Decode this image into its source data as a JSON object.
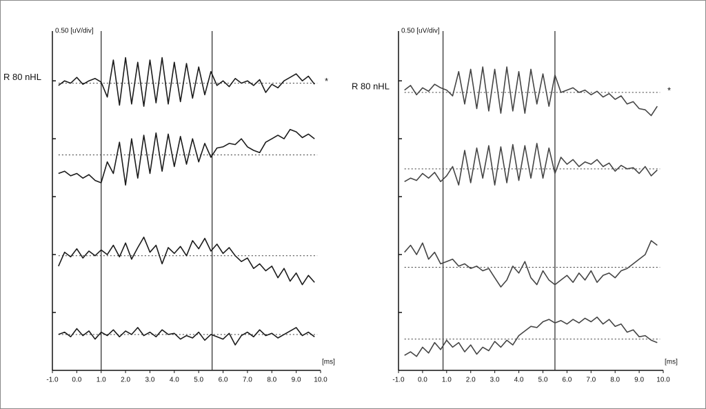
{
  "chart_data": [
    {
      "type": "line",
      "y_label": "0.50 [uV/div]",
      "x_label": "[ms]",
      "trace_label": "R 80 nHL",
      "marker": "*",
      "xlim": [
        -1,
        10
      ],
      "xticks": [
        {
          "value": -1,
          "label": "-1.0"
        },
        {
          "value": 0,
          "label": "0.0"
        },
        {
          "value": 1,
          "label": "1.0"
        },
        {
          "value": 2,
          "label": "2.0"
        },
        {
          "value": 3,
          "label": "3.0"
        },
        {
          "value": 4,
          "label": "4.0"
        },
        {
          "value": 5,
          "label": "5.0"
        },
        {
          "value": 6,
          "label": "6.0"
        },
        {
          "value": 7,
          "label": "7.0"
        },
        {
          "value": 8,
          "label": "8.0"
        },
        {
          "value": 9,
          "label": "9.0"
        },
        {
          "value": 10,
          "label": "10.0"
        }
      ],
      "ylim": [
        0,
        2.93
      ],
      "yticks": [
        0.5,
        1,
        1.5,
        2,
        2.5
      ],
      "cursors": [
        1.0,
        5.55
      ],
      "x": [
        -0.75,
        -0.5,
        -0.25,
        0,
        0.25,
        0.5,
        0.75,
        1,
        1.25,
        1.5,
        1.75,
        2,
        2.25,
        2.5,
        2.75,
        3,
        3.25,
        3.5,
        3.75,
        4,
        4.25,
        4.5,
        4.75,
        5,
        5.25,
        5.5,
        5.75,
        6,
        6.25,
        6.5,
        6.75,
        7,
        7.25,
        7.5,
        7.75,
        8,
        8.25,
        8.5,
        8.75,
        9,
        9.25,
        9.5,
        9.75
      ],
      "series": [
        {
          "color": "#1a1a1a",
          "baseline": 2.48,
          "values": [
            2.46,
            2.5,
            2.48,
            2.53,
            2.47,
            2.5,
            2.52,
            2.49,
            2.36,
            2.68,
            2.29,
            2.7,
            2.3,
            2.66,
            2.28,
            2.68,
            2.31,
            2.7,
            2.3,
            2.66,
            2.32,
            2.65,
            2.35,
            2.62,
            2.38,
            2.58,
            2.46,
            2.5,
            2.45,
            2.52,
            2.48,
            2.5,
            2.46,
            2.51,
            2.4,
            2.47,
            2.44,
            2.5,
            2.53,
            2.56,
            2.5,
            2.54,
            2.47
          ]
        },
        {
          "color": "#1a1a1a",
          "baseline": 1.86,
          "values": [
            1.7,
            1.72,
            1.68,
            1.7,
            1.66,
            1.69,
            1.64,
            1.62,
            1.8,
            1.7,
            1.97,
            1.6,
            2.0,
            1.66,
            2.03,
            1.7,
            2.05,
            1.72,
            2.04,
            1.76,
            2.02,
            1.78,
            2.0,
            1.8,
            1.96,
            1.84,
            1.92,
            1.93,
            1.96,
            1.95,
            2.0,
            1.93,
            1.9,
            1.88,
            1.97,
            2.0,
            2.03,
            2.0,
            2.08,
            2.06,
            2.01,
            2.04,
            2.0
          ]
        },
        {
          "color": "#1a1a1a",
          "baseline": 0.99,
          "values": [
            0.9,
            1.02,
            0.98,
            1.05,
            0.97,
            1.03,
            0.99,
            1.04,
            1.0,
            1.08,
            0.98,
            1.1,
            0.96,
            1.06,
            1.15,
            1.02,
            1.08,
            0.92,
            1.06,
            1.01,
            1.07,
            0.99,
            1.12,
            1.05,
            1.14,
            1.03,
            1.09,
            1.01,
            1.06,
            0.99,
            0.94,
            0.97,
            0.88,
            0.92,
            0.86,
            0.9,
            0.8,
            0.88,
            0.77,
            0.84,
            0.74,
            0.82,
            0.76
          ]
        },
        {
          "color": "#1a1a1a",
          "baseline": 0.31,
          "values": [
            0.31,
            0.33,
            0.29,
            0.36,
            0.3,
            0.34,
            0.27,
            0.33,
            0.3,
            0.35,
            0.29,
            0.34,
            0.31,
            0.37,
            0.3,
            0.33,
            0.29,
            0.35,
            0.31,
            0.32,
            0.27,
            0.3,
            0.28,
            0.33,
            0.26,
            0.31,
            0.29,
            0.27,
            0.32,
            0.22,
            0.3,
            0.33,
            0.29,
            0.35,
            0.3,
            0.32,
            0.28,
            0.31,
            0.34,
            0.37,
            0.3,
            0.33,
            0.29
          ]
        }
      ]
    },
    {
      "type": "line",
      "y_label": "0.50 [uV/div]",
      "x_label": "[ms]",
      "trace_label": "R 80 nHL",
      "marker": "*",
      "xlim": [
        -1,
        10
      ],
      "xticks": [
        {
          "value": -1,
          "label": "-1.0"
        },
        {
          "value": 0,
          "label": "0.0"
        },
        {
          "value": 1,
          "label": "1.0"
        },
        {
          "value": 2,
          "label": "2.0"
        },
        {
          "value": 3,
          "label": "3.0"
        },
        {
          "value": 4,
          "label": "4.0"
        },
        {
          "value": 5,
          "label": "5.0"
        },
        {
          "value": 6,
          "label": "6.0"
        },
        {
          "value": 7,
          "label": "7.0"
        },
        {
          "value": 8,
          "label": "8.0"
        },
        {
          "value": 9,
          "label": "9.0"
        },
        {
          "value": 10,
          "label": "10.0"
        }
      ],
      "ylim": [
        0,
        2.93
      ],
      "yticks": [
        0.5,
        1,
        1.5,
        2,
        2.5
      ],
      "cursors": [
        0.85,
        5.5
      ],
      "x": [
        -0.75,
        -0.5,
        -0.25,
        0,
        0.25,
        0.5,
        0.75,
        1,
        1.25,
        1.5,
        1.75,
        2,
        2.25,
        2.5,
        2.75,
        3,
        3.25,
        3.5,
        3.75,
        4,
        4.25,
        4.5,
        4.75,
        5,
        5.25,
        5.5,
        5.75,
        6,
        6.25,
        6.5,
        6.75,
        7,
        7.25,
        7.5,
        7.75,
        8,
        8.25,
        8.5,
        8.75,
        9,
        9.25,
        9.5,
        9.75
      ],
      "series": [
        {
          "color": "#444444",
          "baseline": 2.4,
          "values": [
            2.42,
            2.46,
            2.38,
            2.44,
            2.41,
            2.47,
            2.44,
            2.42,
            2.37,
            2.58,
            2.3,
            2.6,
            2.26,
            2.62,
            2.24,
            2.6,
            2.22,
            2.62,
            2.24,
            2.58,
            2.22,
            2.6,
            2.3,
            2.56,
            2.28,
            2.55,
            2.4,
            2.42,
            2.44,
            2.4,
            2.42,
            2.38,
            2.41,
            2.36,
            2.39,
            2.34,
            2.37,
            2.3,
            2.32,
            2.26,
            2.25,
            2.2,
            2.28
          ]
        },
        {
          "color": "#444444",
          "baseline": 1.74,
          "values": [
            1.63,
            1.66,
            1.64,
            1.7,
            1.66,
            1.71,
            1.63,
            1.68,
            1.76,
            1.6,
            1.9,
            1.62,
            1.92,
            1.66,
            1.94,
            1.6,
            1.93,
            1.62,
            1.95,
            1.64,
            1.94,
            1.66,
            1.96,
            1.66,
            1.92,
            1.7,
            1.84,
            1.78,
            1.82,
            1.76,
            1.8,
            1.78,
            1.82,
            1.76,
            1.79,
            1.72,
            1.77,
            1.74,
            1.75,
            1.7,
            1.76,
            1.68,
            1.73
          ]
        },
        {
          "color": "#444444",
          "baseline": 0.89,
          "values": [
            1.02,
            1.08,
            1.0,
            1.1,
            0.96,
            1.02,
            0.92,
            0.94,
            0.96,
            0.9,
            0.92,
            0.88,
            0.9,
            0.86,
            0.88,
            0.8,
            0.72,
            0.78,
            0.9,
            0.84,
            0.94,
            0.8,
            0.74,
            0.86,
            0.78,
            0.74,
            0.78,
            0.82,
            0.76,
            0.84,
            0.78,
            0.86,
            0.76,
            0.82,
            0.84,
            0.8,
            0.86,
            0.88,
            0.92,
            0.96,
            1.0,
            1.12,
            1.08
          ]
        },
        {
          "color": "#444444",
          "baseline": 0.27,
          "values": [
            0.13,
            0.16,
            0.12,
            0.2,
            0.15,
            0.24,
            0.18,
            0.26,
            0.2,
            0.24,
            0.16,
            0.22,
            0.14,
            0.2,
            0.17,
            0.25,
            0.2,
            0.26,
            0.22,
            0.3,
            0.34,
            0.38,
            0.37,
            0.42,
            0.44,
            0.41,
            0.43,
            0.4,
            0.44,
            0.41,
            0.45,
            0.42,
            0.46,
            0.4,
            0.44,
            0.38,
            0.4,
            0.33,
            0.35,
            0.29,
            0.3,
            0.26,
            0.24
          ]
        }
      ]
    }
  ]
}
